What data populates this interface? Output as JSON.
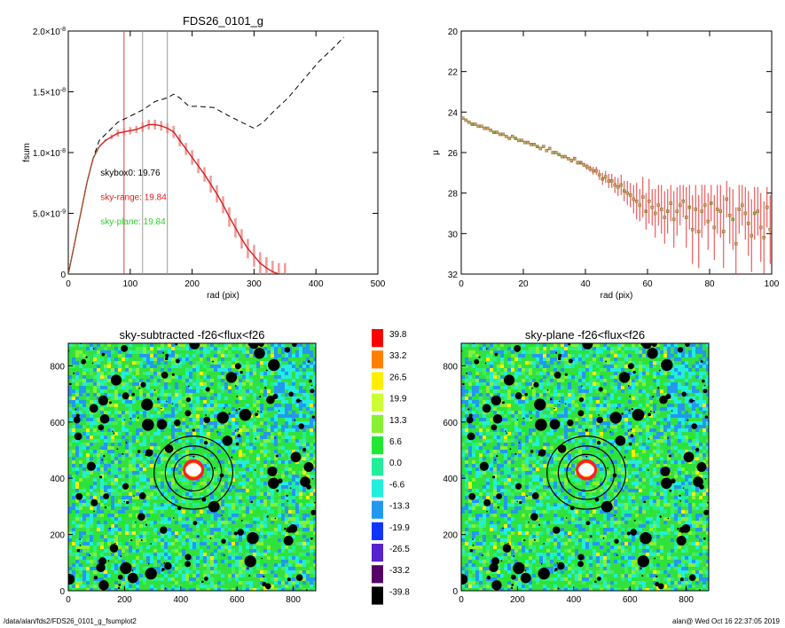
{
  "chart_data": [
    {
      "type": "line",
      "title": "FDS26_0101_g",
      "xlabel": "rad (pix)",
      "ylabel": "fsum",
      "xlim": [
        0,
        500
      ],
      "ylim": [
        0,
        2e-08
      ],
      "x_ticks": [
        "0",
        "100",
        "200",
        "300",
        "400",
        "500"
      ],
      "y_ticks": [
        {
          "value": 0,
          "label": "0"
        },
        {
          "value": 5e-09,
          "label": "5.0×10-9"
        },
        {
          "value": 1e-08,
          "label": "1.0×10-8"
        },
        {
          "value": 1.5e-08,
          "label": "1.5×10-8"
        },
        {
          "value": 2e-08,
          "label": "2.0×10-8"
        }
      ],
      "vlines": [
        {
          "x": 90,
          "color": "#e83a3a"
        },
        {
          "x": 120,
          "color": "#999999"
        },
        {
          "x": 160,
          "color": "#999999"
        }
      ],
      "annotations": [
        {
          "text": "skybox0: 19.76",
          "color": "#000000",
          "x": 52,
          "y": 8.1e-09
        },
        {
          "text": "sky-range: 19.84",
          "color": "#e02020",
          "x": 52,
          "y": 6.1e-09
        },
        {
          "text": "sky-plane: 19.84",
          "color": "#33cc33",
          "x": 52,
          "y": 4.1e-09
        }
      ],
      "series": [
        {
          "style": "dashed",
          "color": "#000000",
          "points": [
            [
              0,
              0
            ],
            [
              10,
              2.5e-09
            ],
            [
              20,
              5e-09
            ],
            [
              30,
              7.5e-09
            ],
            [
              40,
              9.5e-09
            ],
            [
              50,
              1.1e-08
            ],
            [
              60,
              1.15e-08
            ],
            [
              70,
              1.2e-08
            ],
            [
              80,
              1.25e-08
            ],
            [
              100,
              1.3e-08
            ],
            [
              120,
              1.35e-08
            ],
            [
              140,
              1.42e-08
            ],
            [
              160,
              1.45e-08
            ],
            [
              170,
              1.48e-08
            ],
            [
              180,
              1.45e-08
            ],
            [
              195,
              1.38e-08
            ],
            [
              210,
              1.38e-08
            ],
            [
              235,
              1.37e-08
            ],
            [
              260,
              1.3e-08
            ],
            [
              280,
              1.25e-08
            ],
            [
              300,
              1.2e-08
            ],
            [
              315,
              1.25e-08
            ],
            [
              330,
              1.33e-08
            ],
            [
              355,
              1.45e-08
            ],
            [
              380,
              1.6e-08
            ],
            [
              405,
              1.75e-08
            ],
            [
              430,
              1.87e-08
            ],
            [
              445,
              1.95e-08
            ]
          ]
        },
        {
          "style": "errorband",
          "color": "#e83a3a",
          "points": [
            [
              0,
              0
            ],
            [
              10,
              2.5e-09
            ],
            [
              20,
              5e-09
            ],
            [
              30,
              7.5e-09
            ],
            [
              40,
              9.5e-09
            ],
            [
              50,
              1.05e-08
            ],
            [
              60,
              1.1e-08
            ],
            [
              70,
              1.13e-08
            ],
            [
              80,
              1.16e-08
            ],
            [
              90,
              1.17e-08
            ],
            [
              100,
              1.18e-08
            ],
            [
              110,
              1.19e-08
            ],
            [
              120,
              1.21e-08
            ],
            [
              130,
              1.23e-08
            ],
            [
              140,
              1.23e-08
            ],
            [
              150,
              1.22e-08
            ],
            [
              160,
              1.2e-08
            ],
            [
              170,
              1.17e-08
            ],
            [
              180,
              1.1e-08
            ],
            [
              190,
              1.03e-08
            ],
            [
              200,
              9.6e-09
            ],
            [
              210,
              8.9e-09
            ],
            [
              220,
              8.2e-09
            ],
            [
              230,
              7.4e-09
            ],
            [
              240,
              6.6e-09
            ],
            [
              250,
              5.7e-09
            ],
            [
              260,
              4.7e-09
            ],
            [
              270,
              3.8e-09
            ],
            [
              280,
              2.9e-09
            ],
            [
              290,
              2.1e-09
            ],
            [
              300,
              1.5e-09
            ],
            [
              310,
              9e-10
            ],
            [
              320,
              5e-10
            ],
            [
              330,
              2e-10
            ],
            [
              340,
              0
            ],
            [
              350,
              0
            ]
          ],
          "errors": [
            0,
            0,
            0,
            0,
            0,
            0,
            1e-10,
            2e-10,
            3e-10,
            3e-10,
            3e-10,
            3e-10,
            4e-10,
            4e-10,
            4e-10,
            4e-10,
            4e-10,
            5e-10,
            5e-10,
            5e-10,
            6e-10,
            6e-10,
            6e-10,
            7e-10,
            7e-10,
            7e-10,
            8e-10,
            8e-10,
            8e-10,
            8e-10,
            9e-10,
            9e-10,
            9e-10,
            9e-10,
            9e-10,
            9e-10
          ]
        }
      ]
    },
    {
      "type": "scatter",
      "title": "",
      "xlabel": "rad (pix)",
      "ylabel": "μ",
      "xlim": [
        0,
        100
      ],
      "ylim": [
        20,
        32
      ],
      "y_inverted": true,
      "x_ticks": [
        "0",
        "20",
        "40",
        "60",
        "80",
        "100"
      ],
      "y_ticks": [
        "20",
        "22",
        "24",
        "26",
        "28",
        "30",
        "32"
      ],
      "series": [
        {
          "marker": "square",
          "color": "#c8a060",
          "error_color": "#e83a3a",
          "x": [
            0.5,
            1.5,
            2.5,
            3.5,
            4.5,
            5.5,
            6.5,
            7.5,
            8.5,
            9.5,
            10.5,
            11.5,
            12.5,
            13.5,
            14.5,
            15.5,
            16.5,
            17.5,
            18.5,
            19.5,
            20.5,
            21.5,
            22.5,
            23.5,
            24.5,
            25.5,
            26.5,
            27.5,
            28.5,
            29.5,
            30.5,
            31.5,
            32.5,
            33.5,
            34.5,
            35.5,
            36.5,
            37.5,
            38.5,
            39.5,
            40.5,
            41.5,
            42.5,
            43.5,
            44.5,
            45.5,
            46.5,
            47.5,
            48.5,
            49.5,
            50.5,
            51.5,
            52.5,
            53.5,
            54.5,
            55.5,
            56.5,
            57.5,
            58.5,
            59.5,
            60.5,
            61.5,
            62.5,
            63.5,
            64.5,
            65.5,
            66.5,
            67.5,
            68.5,
            69.5,
            70.5,
            71.5,
            72.5,
            73.5,
            74.5,
            75.5,
            76.5,
            77.5,
            78.5,
            79.5,
            80.5,
            81.5,
            82.5,
            83.5,
            84.5,
            85.5,
            86.5,
            87.5,
            88.5,
            89.5,
            90.5,
            91.5,
            92.5,
            93.5,
            94.5,
            95.5,
            96.5,
            97.5,
            98.5,
            99.5
          ],
          "y": [
            24.3,
            24.4,
            24.5,
            24.6,
            24.6,
            24.7,
            24.7,
            24.8,
            24.8,
            24.9,
            25.0,
            25.0,
            25.1,
            25.1,
            25.2,
            25.3,
            25.2,
            25.3,
            25.4,
            25.4,
            25.5,
            25.5,
            25.6,
            25.6,
            25.7,
            25.8,
            25.7,
            25.9,
            25.8,
            26.0,
            26.0,
            26.1,
            26.2,
            26.2,
            26.3,
            26.4,
            26.3,
            26.5,
            26.5,
            26.6,
            26.7,
            26.8,
            26.9,
            26.9,
            27.1,
            27.3,
            27.2,
            27.4,
            27.4,
            27.6,
            27.7,
            27.6,
            27.9,
            28.0,
            28.1,
            28.3,
            28.4,
            28.6,
            28.2,
            28.9,
            28.4,
            28.7,
            29.0,
            28.6,
            28.8,
            29.2,
            28.9,
            28.5,
            29.3,
            28.9,
            28.6,
            28.4,
            29.2,
            28.7,
            29.8,
            28.8,
            29.9,
            28.9,
            28.6,
            29.4,
            28.5,
            29.7,
            28.8,
            28.9,
            29.9,
            28.3,
            29.1,
            29.3,
            30.5,
            28.8,
            28.6,
            29.0,
            29.5,
            30.1,
            29.0,
            28.9,
            29.7,
            30.2,
            28.7,
            29.8
          ],
          "err": [
            0.05,
            0.05,
            0.05,
            0.05,
            0.05,
            0.05,
            0.05,
            0.05,
            0.05,
            0.05,
            0.05,
            0.05,
            0.05,
            0.05,
            0.05,
            0.05,
            0.05,
            0.05,
            0.05,
            0.05,
            0.05,
            0.05,
            0.05,
            0.05,
            0.05,
            0.05,
            0.05,
            0.05,
            0.05,
            0.05,
            0.05,
            0.05,
            0.05,
            0.05,
            0.05,
            0.1,
            0.1,
            0.1,
            0.1,
            0.1,
            0.15,
            0.15,
            0.2,
            0.2,
            0.25,
            0.3,
            0.3,
            0.35,
            0.35,
            0.4,
            0.45,
            0.5,
            0.5,
            0.6,
            0.6,
            0.7,
            0.9,
            0.8,
            1.0,
            0.9,
            1.1,
            0.9,
            1.2,
            1.0,
            1.2,
            1.3,
            1.1,
            0.9,
            1.4,
            1.2,
            1.0,
            0.8,
            1.5,
            1.1,
            1.7,
            1.2,
            1.8,
            1.3,
            1.0,
            1.4,
            0.9,
            1.6,
            1.2,
            1.3,
            1.8,
            0.9,
            1.4,
            1.5,
            1.8,
            1.2,
            1.0,
            1.3,
            1.6,
            1.8,
            1.3,
            1.2,
            1.7,
            1.8,
            1.0,
            1.7
          ]
        }
      ]
    },
    {
      "type": "heatmap",
      "title": "sky-subtracted -f26<flux<f26",
      "xlim": [
        0,
        880
      ],
      "ylim": [
        0,
        880
      ],
      "x_ticks": [
        "0",
        "200",
        "400",
        "600",
        "800"
      ],
      "y_ticks": [
        "0",
        "200",
        "400",
        "600",
        "800"
      ],
      "ellipses": [
        {
          "cx": 445,
          "cy": 420,
          "rx": 140,
          "ry": 130
        },
        {
          "cx": 445,
          "cy": 420,
          "rx": 100,
          "ry": 95
        },
        {
          "cx": 445,
          "cy": 420,
          "rx": 70,
          "ry": 65
        }
      ]
    },
    {
      "type": "heatmap",
      "title": "sky-plane -f26<flux<f26",
      "xlim": [
        0,
        880
      ],
      "ylim": [
        0,
        880
      ],
      "x_ticks": [
        "0",
        "200",
        "400",
        "600",
        "800"
      ],
      "y_ticks": [
        "0",
        "200",
        "400",
        "600",
        "800"
      ],
      "ellipses": [
        {
          "cx": 445,
          "cy": 420,
          "rx": 140,
          "ry": 130
        },
        {
          "cx": 445,
          "cy": 420,
          "rx": 100,
          "ry": 95
        },
        {
          "cx": 445,
          "cy": 420,
          "rx": 70,
          "ry": 65
        }
      ]
    }
  ],
  "colorbar": [
    {
      "label": "39.8",
      "color": "#ff0000"
    },
    {
      "label": "33.2",
      "color": "#ff8000"
    },
    {
      "label": "26.5",
      "color": "#ffee00"
    },
    {
      "label": "19.9",
      "color": "#ccff33"
    },
    {
      "label": "13.3",
      "color": "#88f033"
    },
    {
      "label": "6.6",
      "color": "#22e833"
    },
    {
      "label": "0.0",
      "color": "#22ee99"
    },
    {
      "label": "-6.6",
      "color": "#22eedd"
    },
    {
      "label": "-13.3",
      "color": "#2299ee"
    },
    {
      "label": "-19.9",
      "color": "#1133ff"
    },
    {
      "label": "-26.5",
      "color": "#5522cc"
    },
    {
      "label": "-33.2",
      "color": "#550066"
    },
    {
      "label": "-39.8",
      "color": "#000000"
    }
  ],
  "footer": {
    "left": "/data/alan/fds2/FDS26_0101_g_fsumplot2",
    "right": "alan@  Wed Oct 16 22:37:05 2019"
  }
}
